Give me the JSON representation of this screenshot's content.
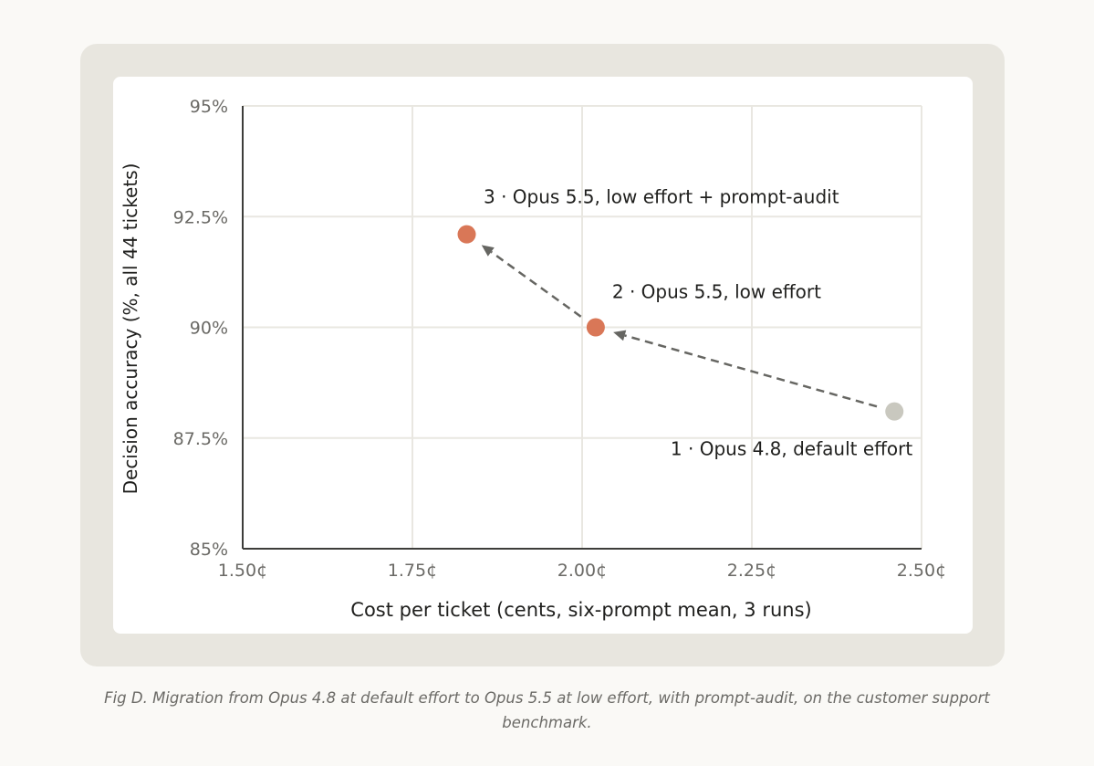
{
  "chart_data": {
    "type": "scatter",
    "xlabel": "Cost per ticket (cents, six-prompt mean, 3 runs)",
    "ylabel": "Decision accuracy (%, all 44 tickets)",
    "xlim": [
      1.5,
      2.5
    ],
    "ylim": [
      85,
      95
    ],
    "x_ticks": [
      1.5,
      1.75,
      2.0,
      2.25,
      2.5
    ],
    "x_tick_labels": [
      "1.50¢",
      "1.75¢",
      "2.00¢",
      "2.25¢",
      "2.50¢"
    ],
    "y_ticks": [
      85,
      87.5,
      90,
      92.5,
      95
    ],
    "y_tick_labels": [
      "85%",
      "87.5%",
      "90%",
      "92.5%",
      "95%"
    ],
    "grid": true,
    "points": [
      {
        "x": 2.46,
        "y": 88.1,
        "label": "1 · Opus 4.8, default effort",
        "color": "#c9c8bf"
      },
      {
        "x": 2.02,
        "y": 90.0,
        "label": "2 · Opus 5.5, low effort",
        "color": "#d97757"
      },
      {
        "x": 1.83,
        "y": 92.1,
        "label": "3 · Opus 5.5, low effort + prompt-audit",
        "color": "#d97757"
      }
    ],
    "arrows": [
      {
        "from": 0,
        "to": 1
      },
      {
        "from": 1,
        "to": 2
      }
    ]
  },
  "caption": "Fig D. Migration from Opus 4.8 at default effort to Opus 5.5 at low effort, with prompt-audit, on the customer support benchmark.",
  "colors": {
    "grid": "#e9e7e1",
    "axis": "#3d3d3a",
    "tick_text": "#6b6a66",
    "label_text": "#1f1f1d",
    "arrow": "#666662",
    "highlight": "#d97757",
    "baseline_point": "#c9c8bf"
  }
}
